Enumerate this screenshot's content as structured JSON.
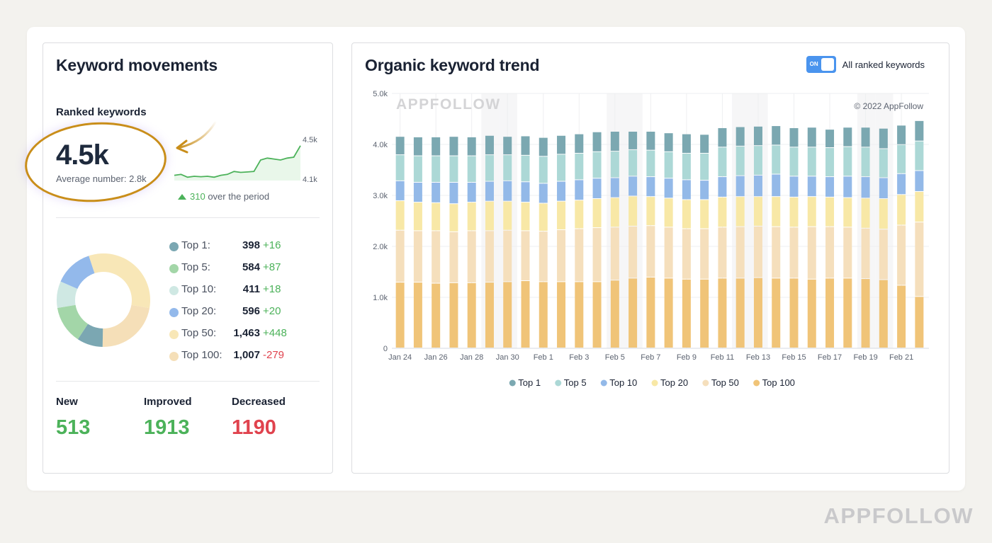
{
  "keyword_movements": {
    "title": "Keyword movements",
    "section_label": "Ranked keywords",
    "big_value": "4.5k",
    "average_text": "Average number: 2.8k",
    "sparkline": {
      "max_label": "4.5k",
      "min_label": "4.1k",
      "values": [
        4140,
        4150,
        4120,
        4130,
        4125,
        4130,
        4120,
        4140,
        4150,
        4180,
        4170,
        4175,
        4180,
        4300,
        4320,
        4310,
        4300,
        4320,
        4330,
        4450
      ],
      "range": [
        4100,
        4500
      ],
      "line_color": "#4cb25a",
      "fill_color": "#e9f7ea"
    },
    "delta_value": "310",
    "delta_text": "over the period",
    "breakdown": [
      {
        "label": "Top 1:",
        "value": "398",
        "change": "+16",
        "trend": "up",
        "color": "#7ba7b2",
        "count": 398
      },
      {
        "label": "Top 5:",
        "value": "584",
        "change": "+87",
        "trend": "up",
        "color": "#a3d6a8",
        "count": 584
      },
      {
        "label": "Top 10:",
        "value": "411",
        "change": "+18",
        "trend": "up",
        "color": "#cfe8e3",
        "count": 411
      },
      {
        "label": "Top 20:",
        "value": "596",
        "change": "+20",
        "trend": "up",
        "color": "#93b9eb",
        "count": 596
      },
      {
        "label": "Top 50:",
        "value": "1,463",
        "change": "+448",
        "trend": "up",
        "color": "#f8e7b7",
        "count": 1463
      },
      {
        "label": "Top 100:",
        "value": "1,007",
        "change": "-279",
        "trend": "down",
        "color": "#f5dfb8",
        "count": 1007
      }
    ],
    "stats": [
      {
        "label": "New",
        "value": "513",
        "color": "#4cb25a"
      },
      {
        "label": "Improved",
        "value": "1913",
        "color": "#4cb25a"
      },
      {
        "label": "Decreased",
        "value": "1190",
        "color": "#e0434e"
      }
    ]
  },
  "organic_trend": {
    "title": "Organic keyword trend",
    "toggle_state": "ON",
    "toggle_label": "All ranked keywords",
    "watermark": "APPFOLLOW",
    "copyright": "© 2022 AppFollow"
  },
  "page_watermark": "APPFOLLOW",
  "chart_data": {
    "type": "bar",
    "stacked": true,
    "title": "Organic keyword trend",
    "xlabel": "",
    "ylabel": "",
    "ylim": [
      0,
      5000
    ],
    "yticks": [
      0,
      1000,
      2000,
      3000,
      4000,
      5000
    ],
    "ytick_labels": [
      "0",
      "1.0k",
      "2.0k",
      "3.0k",
      "4.0k",
      "5.0k"
    ],
    "grid": true,
    "legend_position": "bottom-center",
    "categories": [
      "Jan 24",
      "Jan 25",
      "Jan 26",
      "Jan 27",
      "Jan 28",
      "Jan 29",
      "Jan 30",
      "Jan 31",
      "Feb 1",
      "Feb 2",
      "Feb 3",
      "Feb 4",
      "Feb 5",
      "Feb 6",
      "Feb 7",
      "Feb 8",
      "Feb 9",
      "Feb 10",
      "Feb 11",
      "Feb 12",
      "Feb 13",
      "Feb 14",
      "Feb 15",
      "Feb 16",
      "Feb 17",
      "Feb 18",
      "Feb 19",
      "Feb 20",
      "Feb 21",
      "Feb 22"
    ],
    "xtick_labels": [
      "Jan 24",
      "Jan 26",
      "Jan 28",
      "Jan 30",
      "Feb 1",
      "Feb 3",
      "Feb 5",
      "Feb 7",
      "Feb 9",
      "Feb 11",
      "Feb 13",
      "Feb 15",
      "Feb 17",
      "Feb 19",
      "Feb 21"
    ],
    "shaded_categories": [
      "Jan 29",
      "Jan 30",
      "Feb 5",
      "Feb 6",
      "Feb 12",
      "Feb 13",
      "Feb 19",
      "Feb 20"
    ],
    "series": [
      {
        "name": "Top 100",
        "color": "#f0c478",
        "values": [
          1290,
          1290,
          1270,
          1280,
          1280,
          1290,
          1300,
          1320,
          1300,
          1300,
          1300,
          1300,
          1330,
          1370,
          1390,
          1370,
          1350,
          1350,
          1370,
          1370,
          1380,
          1370,
          1370,
          1350,
          1370,
          1370,
          1360,
          1340,
          1230,
          1010
        ]
      },
      {
        "name": "Top 50",
        "color": "#f5dfbc",
        "values": [
          1020,
          1010,
          1030,
          1000,
          1020,
          1010,
          1010,
          980,
          990,
          1020,
          1040,
          1060,
          1040,
          1020,
          1010,
          1000,
          990,
          990,
          1000,
          1010,
          1010,
          1010,
          1000,
          1030,
          1010,
          1000,
          990,
          990,
          1180,
          1460
        ]
      },
      {
        "name": "Top 20",
        "color": "#f8e8a6",
        "values": [
          580,
          560,
          550,
          550,
          560,
          580,
          570,
          560,
          550,
          560,
          560,
          570,
          580,
          590,
          570,
          570,
          570,
          570,
          590,
          590,
          580,
          590,
          590,
          590,
          580,
          580,
          590,
          600,
          600,
          600
        ]
      },
      {
        "name": "Top 10",
        "color": "#93b9e8",
        "values": [
          390,
          390,
          400,
          420,
          390,
          390,
          400,
          400,
          390,
          390,
          400,
          400,
          390,
          390,
          390,
          390,
          390,
          380,
          400,
          410,
          420,
          440,
          410,
          400,
          400,
          420,
          420,
          410,
          410,
          410
        ]
      },
      {
        "name": "Top 5",
        "color": "#acd8d6",
        "values": [
          510,
          520,
          520,
          520,
          520,
          520,
          510,
          520,
          530,
          530,
          520,
          520,
          520,
          520,
          520,
          520,
          520,
          530,
          580,
          580,
          580,
          570,
          570,
          570,
          570,
          580,
          580,
          570,
          570,
          580
        ]
      },
      {
        "name": "Top 1",
        "color": "#7ba8b1",
        "values": [
          360,
          370,
          370,
          380,
          370,
          380,
          360,
          380,
          370,
          370,
          380,
          390,
          390,
          360,
          370,
          370,
          380,
          370,
          380,
          380,
          380,
          380,
          380,
          390,
          360,
          380,
          390,
          400,
          380,
          400
        ]
      }
    ]
  }
}
